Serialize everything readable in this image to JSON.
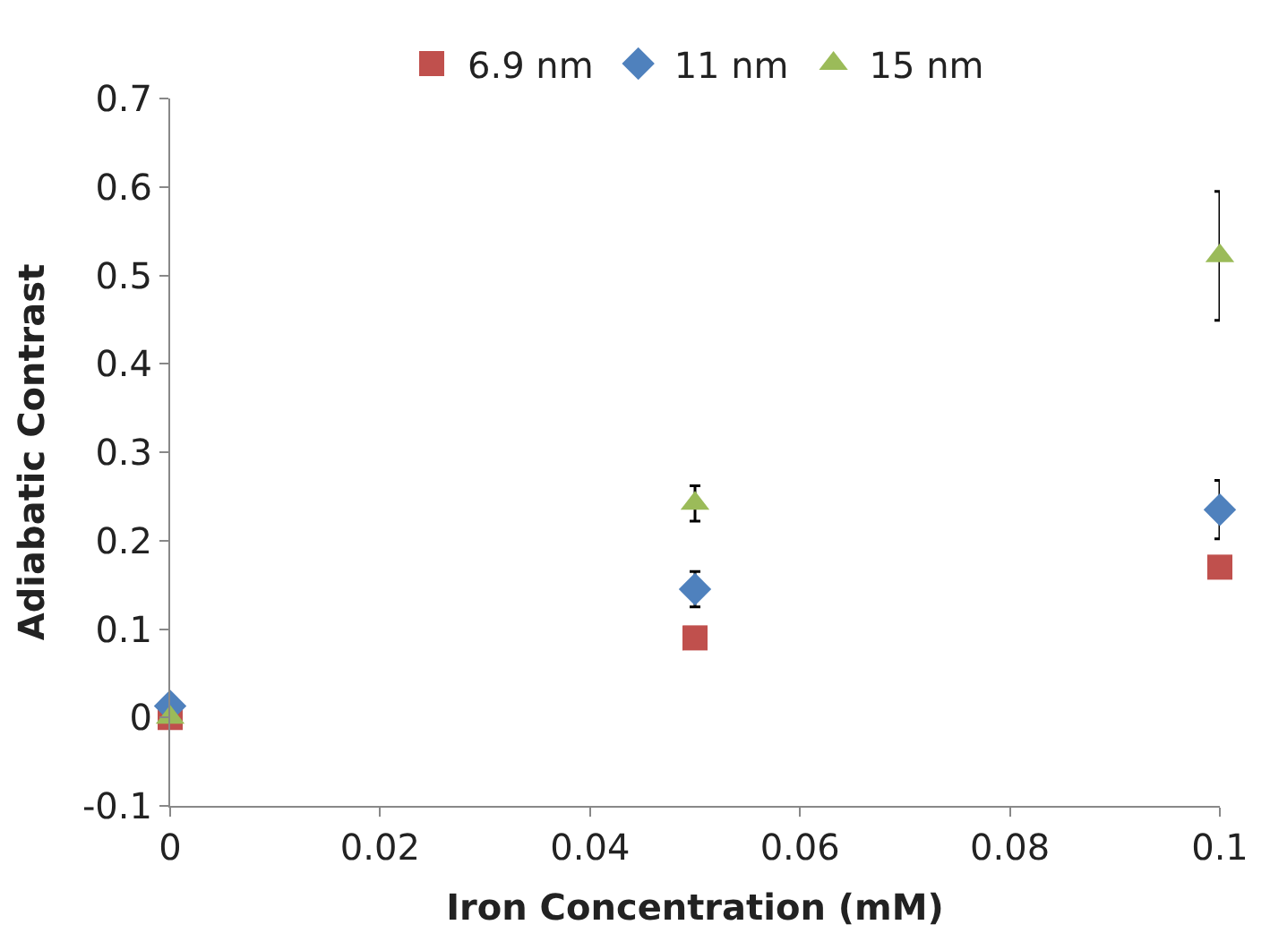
{
  "chart_data": {
    "type": "scatter",
    "xlabel": "Iron Concentration (mM)",
    "ylabel": "Adiabatic Contrast",
    "x": [
      0,
      0.05,
      0.1
    ],
    "series": [
      {
        "name": "6.9 nm",
        "color": "#c0504d",
        "marker": "square",
        "values": [
          0,
          0.09,
          0.17
        ]
      },
      {
        "name": "11 nm",
        "color": "#4f81bd",
        "marker": "diamond",
        "values": [
          0.013,
          0.145,
          0.235
        ],
        "errors": [
          null,
          0.02,
          0.033
        ]
      },
      {
        "name": "15 nm",
        "color": "#9bbb59",
        "marker": "triangle",
        "values": [
          0,
          0.242,
          0.522
        ],
        "errors": [
          null,
          0.02,
          0.073
        ]
      }
    ],
    "xlim": [
      0,
      0.1
    ],
    "xticks": [
      0,
      0.02,
      0.04,
      0.06,
      0.08,
      0.1
    ],
    "ylim": [
      -0.1,
      0.7
    ],
    "yticks": [
      -0.1,
      0,
      0.1,
      0.2,
      0.3,
      0.4,
      0.5,
      0.6,
      0.7
    ],
    "legend": "top"
  }
}
